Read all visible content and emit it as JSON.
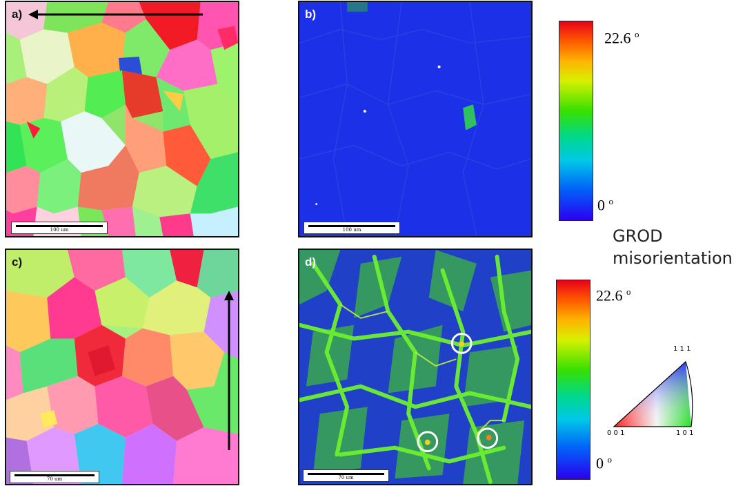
{
  "panels": {
    "a": {
      "label": "a)",
      "scale": "100 um"
    },
    "b": {
      "label": "b)",
      "scale": "100 um"
    },
    "c": {
      "label": "c)",
      "scale": "70 um"
    },
    "d": {
      "label": "d)",
      "scale": "70 um"
    }
  },
  "colorbar_top": {
    "max": "22.6",
    "min": "0",
    "unit": "o"
  },
  "colorbar_bottom": {
    "max": "22.6",
    "min": "0",
    "unit": "o"
  },
  "legend": {
    "line1": "GROD",
    "line2": "misorientation"
  },
  "ipf_key": {
    "corner_top": "1 1 1",
    "corner_left": "0 0 1",
    "corner_right": "1 0 1"
  },
  "colors": {
    "frame": "#111111",
    "grod_high": "#e8001a",
    "grod_low": "#2b00f0",
    "panel_b_bg": "#1a2ee6",
    "panel_d_bg": "#1f3bd0"
  }
}
